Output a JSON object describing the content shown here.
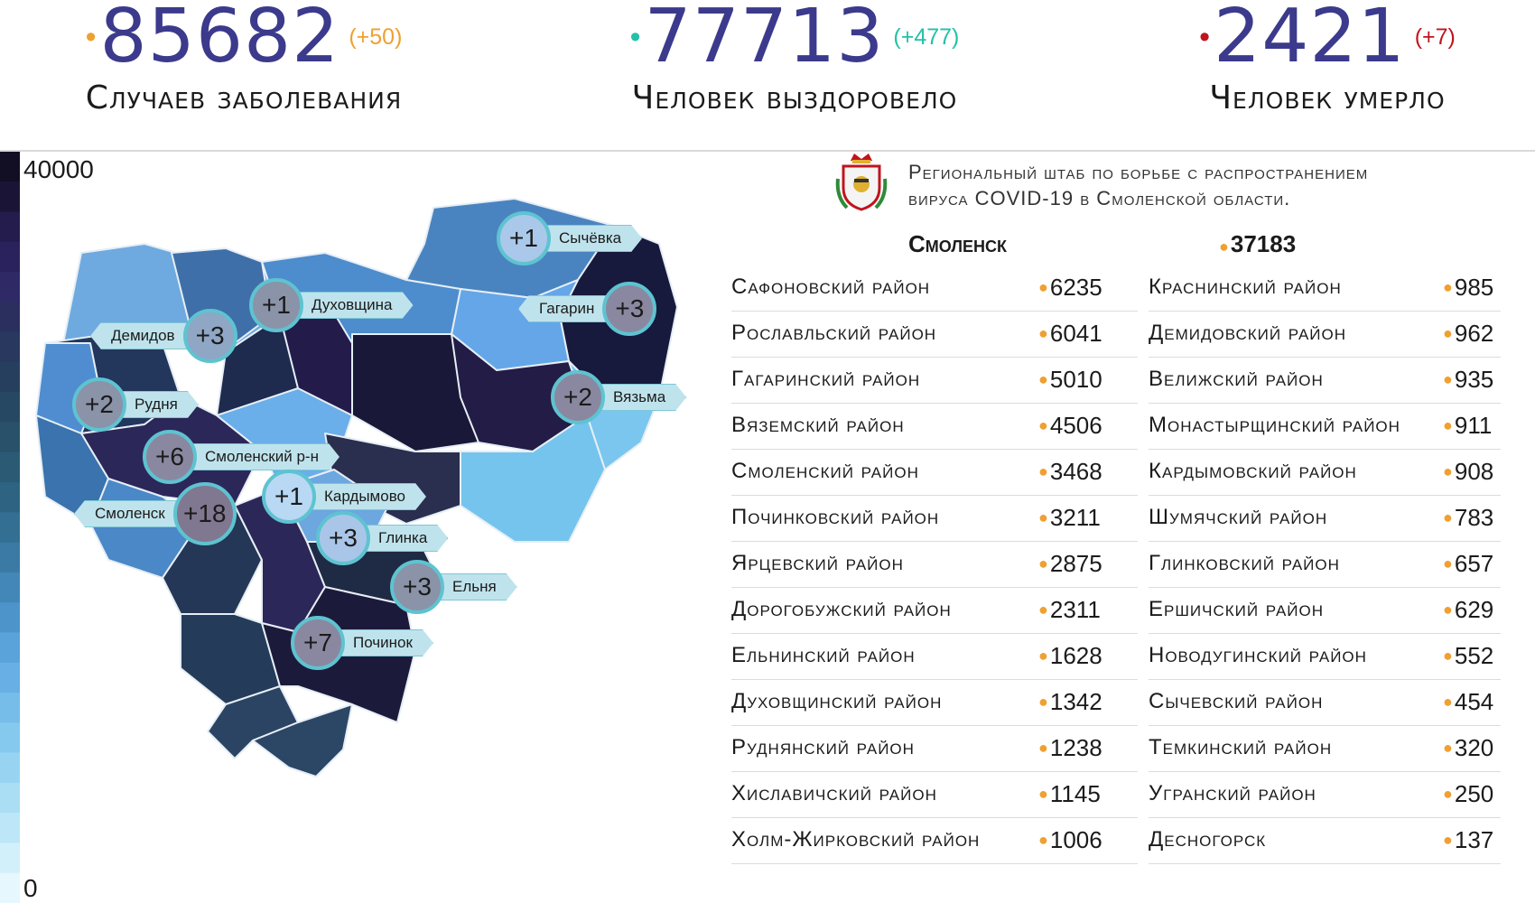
{
  "header": {
    "cases": {
      "value": "85682",
      "delta": "(+50)",
      "label": "Случаев заболевания",
      "color": "#f0a030"
    },
    "recovered": {
      "value": "77713",
      "delta": "(+477)",
      "label": "Человек выздоровело",
      "color": "#23c1a8"
    },
    "deaths": {
      "value": "2421",
      "delta": "(+7)",
      "label": "Человек умерло",
      "color": "#c0141e"
    }
  },
  "legend": {
    "max": "40000",
    "min": "0"
  },
  "headquarters": {
    "line1": "Региональный штаб по борьбе с распространением",
    "line2": "вируса COVID-19 в Смоленской области."
  },
  "city": {
    "name": "Смоленск",
    "value": "37183"
  },
  "map_labels": [
    {
      "increase": "+1",
      "name": "Сычёвка"
    },
    {
      "increase": "+1",
      "name": "Духовщина"
    },
    {
      "increase": "+3",
      "name": "Гагарин"
    },
    {
      "increase": "+3",
      "name": "Демидов"
    },
    {
      "increase": "+2",
      "name": "Рудня"
    },
    {
      "increase": "+2",
      "name": "Вязьма"
    },
    {
      "increase": "+6",
      "name": "Смоленский р-н"
    },
    {
      "increase": "+1",
      "name": "Кардымово"
    },
    {
      "increase": "+18",
      "name": "Смоленск"
    },
    {
      "increase": "+3",
      "name": "Глинка"
    },
    {
      "increase": "+3",
      "name": "Ельня"
    },
    {
      "increase": "+7",
      "name": "Починок"
    }
  ],
  "left_column": [
    {
      "name": "Сафоновский район",
      "value": "6235"
    },
    {
      "name": "Рославльский район",
      "value": "6041"
    },
    {
      "name": "Гагаринский район",
      "value": "5010"
    },
    {
      "name": "Вяземский район",
      "value": "4506"
    },
    {
      "name": "Смоленский район",
      "value": "3468"
    },
    {
      "name": "Починковский район",
      "value": "3211"
    },
    {
      "name": "Ярцевский район",
      "value": "2875"
    },
    {
      "name": "Дорогобужский район",
      "value": "2311"
    },
    {
      "name": "Ельнинский район",
      "value": "1628"
    },
    {
      "name": "Духовщинский район",
      "value": "1342"
    },
    {
      "name": "Руднянский район",
      "value": "1238"
    },
    {
      "name": "Хиславичский район",
      "value": "1145"
    },
    {
      "name": "Холм-Жирковский район",
      "value": "1006"
    }
  ],
  "right_column": [
    {
      "name": "Краснинский район",
      "value": "985"
    },
    {
      "name": "Демидовский район",
      "value": "962"
    },
    {
      "name": "Велижский район",
      "value": "935"
    },
    {
      "name": "Монастырщинский район",
      "value": "911"
    },
    {
      "name": "Кардымовский район",
      "value": "908"
    },
    {
      "name": "Шумячский район",
      "value": "783"
    },
    {
      "name": "Глинковский район",
      "value": "657"
    },
    {
      "name": "Ершичский район",
      "value": "629"
    },
    {
      "name": "Новодугинский район",
      "value": "552"
    },
    {
      "name": "Сычевский район",
      "value": "454"
    },
    {
      "name": "Темкинский район",
      "value": "320"
    },
    {
      "name": "Угранский район",
      "value": "250"
    },
    {
      "name": "Десногорск",
      "value": "137"
    }
  ]
}
